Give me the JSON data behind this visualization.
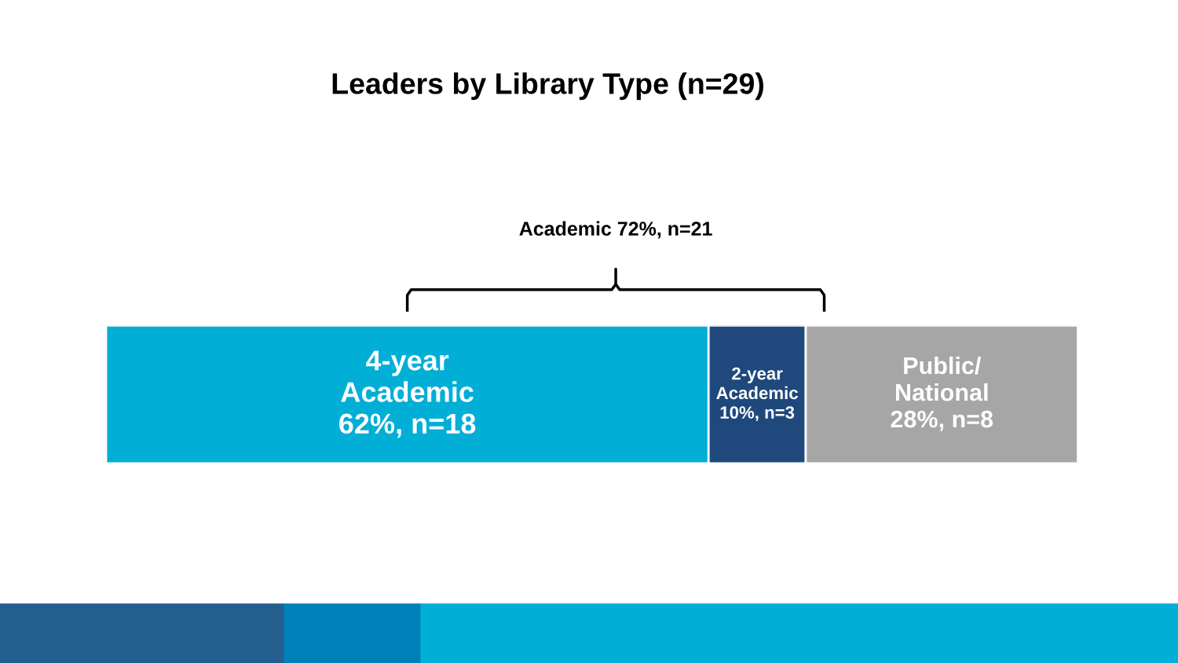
{
  "chart_data": {
    "type": "bar",
    "orientation": "horizontal",
    "stacked": true,
    "title": "Leaders by Library Type (n=29)",
    "categories": [
      null
    ],
    "series": [
      {
        "name": "4-year\nAcademic",
        "color": "#00aed6",
        "values": [
          62
        ],
        "value_labels": [
          "62%, n=18"
        ]
      },
      {
        "name": "2-year\nAcademic",
        "color": "#1f497d",
        "values": [
          10
        ],
        "value_labels": [
          "10%, n=3"
        ]
      },
      {
        "name": "Public/\nNational",
        "color": "#a6a6a6",
        "values": [
          28
        ],
        "value_labels": [
          "28%, n=8"
        ]
      }
    ],
    "xlim": [
      0,
      100
    ],
    "tick_labels": false,
    "annotations": [
      "Academic 72%, n=21"
    ]
  }
}
